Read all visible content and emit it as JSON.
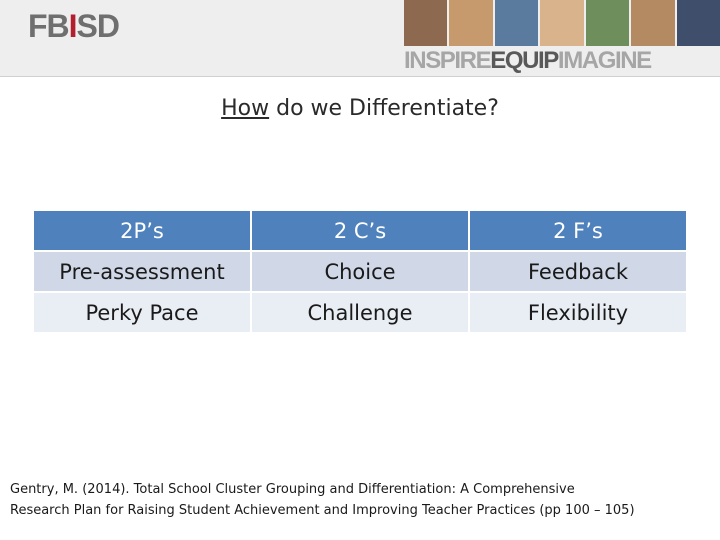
{
  "banner": {
    "logo_fb": "FB",
    "logo_i": "I",
    "logo_sd": "SD",
    "slogan_1": "INSPIRE",
    "slogan_2": "EQUIP",
    "slogan_3": "IMAGINE",
    "photo_colors": [
      "#8d6a4f",
      "#c79a6e",
      "#5a7a9e",
      "#d9b38c",
      "#6e8f5c",
      "#b48a63",
      "#3f4f6b"
    ]
  },
  "title": {
    "underlined": "How",
    "rest": " do we Differentiate?"
  },
  "table": {
    "headers": [
      "2P’s",
      "2 C’s",
      "2 F’s"
    ],
    "rows": [
      [
        "Pre-assessment",
        "Choice",
        "Feedback"
      ],
      [
        "Perky Pace",
        "Challenge",
        "Flexibility"
      ]
    ]
  },
  "citation": {
    "line1": "Gentry, M. (2014). Total School Cluster Grouping and Differentiation: A Comprehensive",
    "line2": "Research Plan for Raising Student Achievement and Improving Teacher Practices (pp 100 – 105)"
  }
}
